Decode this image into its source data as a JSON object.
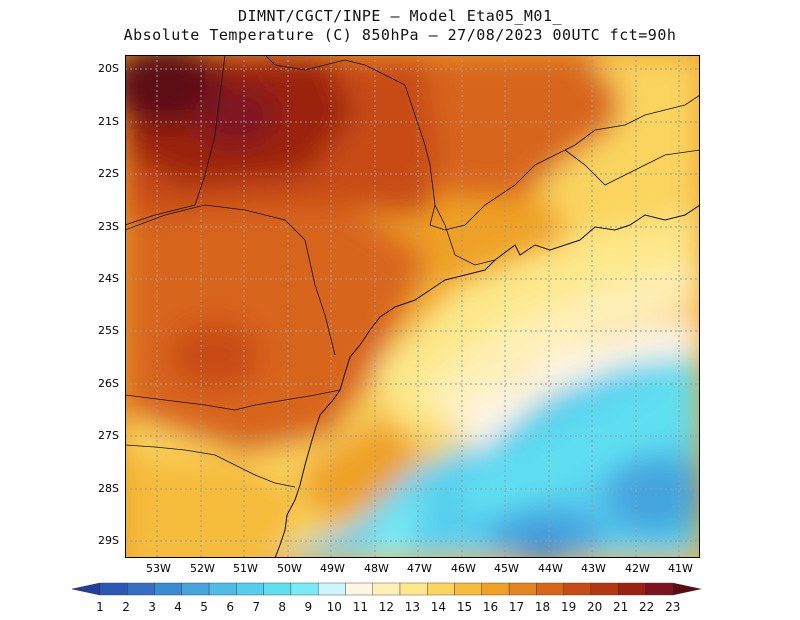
{
  "header": {
    "line1": "DIMNT/CGCT/INPE –  Model Eta05_M01_",
    "line2": "Absolute Temperature (C) 850hPa –  27/08/2023 00UTC fct=90h"
  },
  "map": {
    "lat_labels": [
      "20S",
      "21S",
      "22S",
      "23S",
      "24S",
      "25S",
      "26S",
      "27S",
      "28S",
      "29S"
    ],
    "lon_labels": [
      "53W",
      "52W",
      "51W",
      "50W",
      "49W",
      "48W",
      "47W",
      "46W",
      "45W",
      "44W",
      "43W",
      "42W",
      "41W"
    ]
  },
  "colorbar": {
    "labels": [
      "1",
      "2",
      "3",
      "4",
      "5",
      "6",
      "7",
      "8",
      "9",
      "10",
      "11",
      "12",
      "13",
      "14",
      "15",
      "16",
      "17",
      "18",
      "19",
      "20",
      "21",
      "22",
      "23"
    ],
    "colors": [
      "#1f3f9f",
      "#2a58b4",
      "#3370c4",
      "#3a8bd2",
      "#45a5df",
      "#4fbce8",
      "#56cfee",
      "#5fdff2",
      "#78ecf5",
      "#cdf6fa",
      "#fff6e5",
      "#fff0b8",
      "#fde88a",
      "#fad45e",
      "#f6bc3a",
      "#efa126",
      "#e58520",
      "#d8651a",
      "#c84b15",
      "#b33711",
      "#9b2110",
      "#7e1220",
      "#5c0b16"
    ]
  }
}
